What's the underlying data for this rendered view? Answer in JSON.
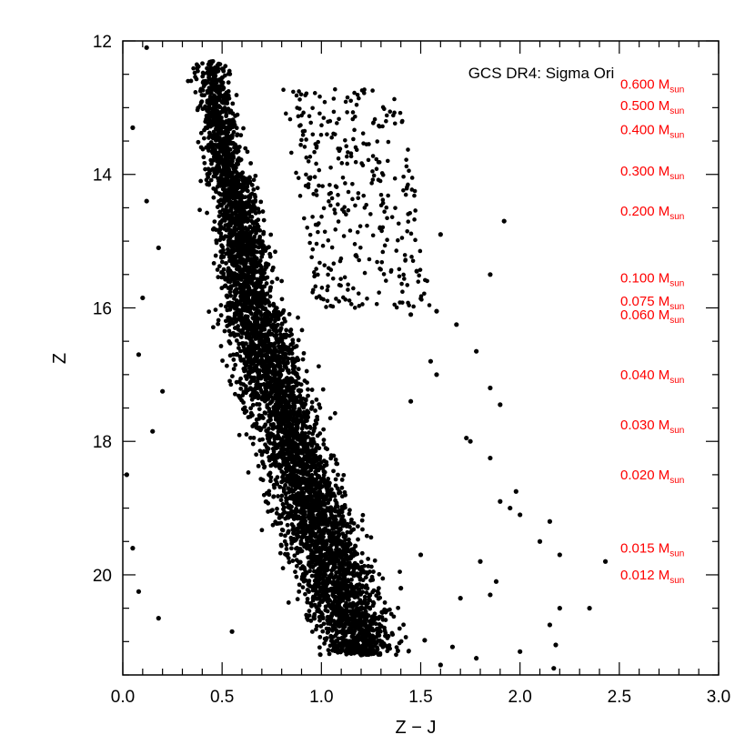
{
  "chart_data": {
    "type": "scatter",
    "title": "GCS DR4: Sigma Ori",
    "xlabel": "Z − J",
    "ylabel": "Z",
    "xlim": [
      0.0,
      3.0
    ],
    "ylim": [
      21.5,
      12.0
    ],
    "y_inverted": true,
    "x_ticks": [
      {
        "value": 0.0,
        "label": "0.0"
      },
      {
        "value": 0.5,
        "label": "0.5"
      },
      {
        "value": 1.0,
        "label": "1.0"
      },
      {
        "value": 1.5,
        "label": "1.5"
      },
      {
        "value": 2.0,
        "label": "2.0"
      },
      {
        "value": 2.5,
        "label": "2.5"
      },
      {
        "value": 3.0,
        "label": "3.0"
      }
    ],
    "y_ticks": [
      {
        "value": 12,
        "label": "12"
      },
      {
        "value": 14,
        "label": "14"
      },
      {
        "value": 16,
        "label": "16"
      },
      {
        "value": 18,
        "label": "18"
      },
      {
        "value": 20,
        "label": "20"
      }
    ],
    "grid": false,
    "marker_color": "#000000",
    "mass_label_color": "#ff0000",
    "mass_label_unit": "M",
    "mass_label_subscript": "sun",
    "mass_labels": [
      {
        "mass": "0.600",
        "z": 12.65
      },
      {
        "mass": "0.500",
        "z": 12.97
      },
      {
        "mass": "0.400",
        "z": 13.33
      },
      {
        "mass": "0.300",
        "z": 13.95
      },
      {
        "mass": "0.200",
        "z": 14.55
      },
      {
        "mass": "0.100",
        "z": 15.55
      },
      {
        "mass": "0.075",
        "z": 15.9
      },
      {
        "mass": "0.060",
        "z": 16.1
      },
      {
        "mass": "0.040",
        "z": 17.0
      },
      {
        "mass": "0.030",
        "z": 17.75
      },
      {
        "mass": "0.020",
        "z": 18.5
      },
      {
        "mass": "0.015",
        "z": 19.6
      },
      {
        "mass": "0.012",
        "z": 20.0
      }
    ],
    "sequence": {
      "description": "dense cluster of sources; approximate sampled points",
      "points": [
        [
          0.12,
          12.1
        ],
        [
          0.05,
          13.3
        ],
        [
          0.12,
          14.4
        ],
        [
          0.18,
          15.1
        ],
        [
          0.1,
          15.85
        ],
        [
          0.08,
          16.7
        ],
        [
          0.2,
          17.25
        ],
        [
          0.15,
          17.85
        ],
        [
          0.02,
          18.5
        ],
        [
          0.05,
          19.6
        ],
        [
          0.08,
          20.25
        ],
        [
          0.18,
          20.65
        ],
        [
          0.55,
          20.85
        ],
        [
          1.2,
          21.2
        ],
        [
          1.6,
          21.35
        ],
        [
          1.78,
          21.25
        ],
        [
          2.0,
          21.15
        ],
        [
          2.17,
          21.4
        ],
        [
          2.18,
          21.05
        ],
        [
          2.15,
          20.75
        ],
        [
          2.2,
          20.5
        ],
        [
          2.35,
          20.5
        ],
        [
          2.43,
          19.8
        ],
        [
          2.2,
          19.7
        ],
        [
          2.1,
          19.5
        ],
        [
          2.15,
          19.2
        ],
        [
          2.0,
          19.1
        ],
        [
          1.95,
          19.0
        ],
        [
          1.9,
          18.9
        ],
        [
          1.98,
          18.75
        ],
        [
          1.85,
          18.25
        ],
        [
          1.75,
          18.0
        ],
        [
          1.73,
          17.95
        ],
        [
          1.9,
          17.45
        ],
        [
          1.85,
          17.2
        ],
        [
          1.78,
          16.65
        ],
        [
          1.68,
          16.25
        ],
        [
          1.85,
          15.5
        ],
        [
          1.92,
          14.7
        ],
        [
          1.6,
          14.9
        ],
        [
          1.48,
          15.45
        ],
        [
          1.45,
          16.1
        ],
        [
          1.58,
          16.05
        ],
        [
          1.55,
          16.8
        ],
        [
          1.58,
          17.0
        ],
        [
          1.45,
          17.4
        ],
        [
          1.5,
          19.7
        ],
        [
          1.4,
          20.2
        ],
        [
          1.7,
          20.35
        ],
        [
          1.85,
          20.3
        ],
        [
          1.8,
          19.8
        ],
        [
          1.88,
          20.1
        ],
        [
          1.66,
          21.08
        ],
        [
          1.52,
          20.98
        ]
      ]
    }
  }
}
